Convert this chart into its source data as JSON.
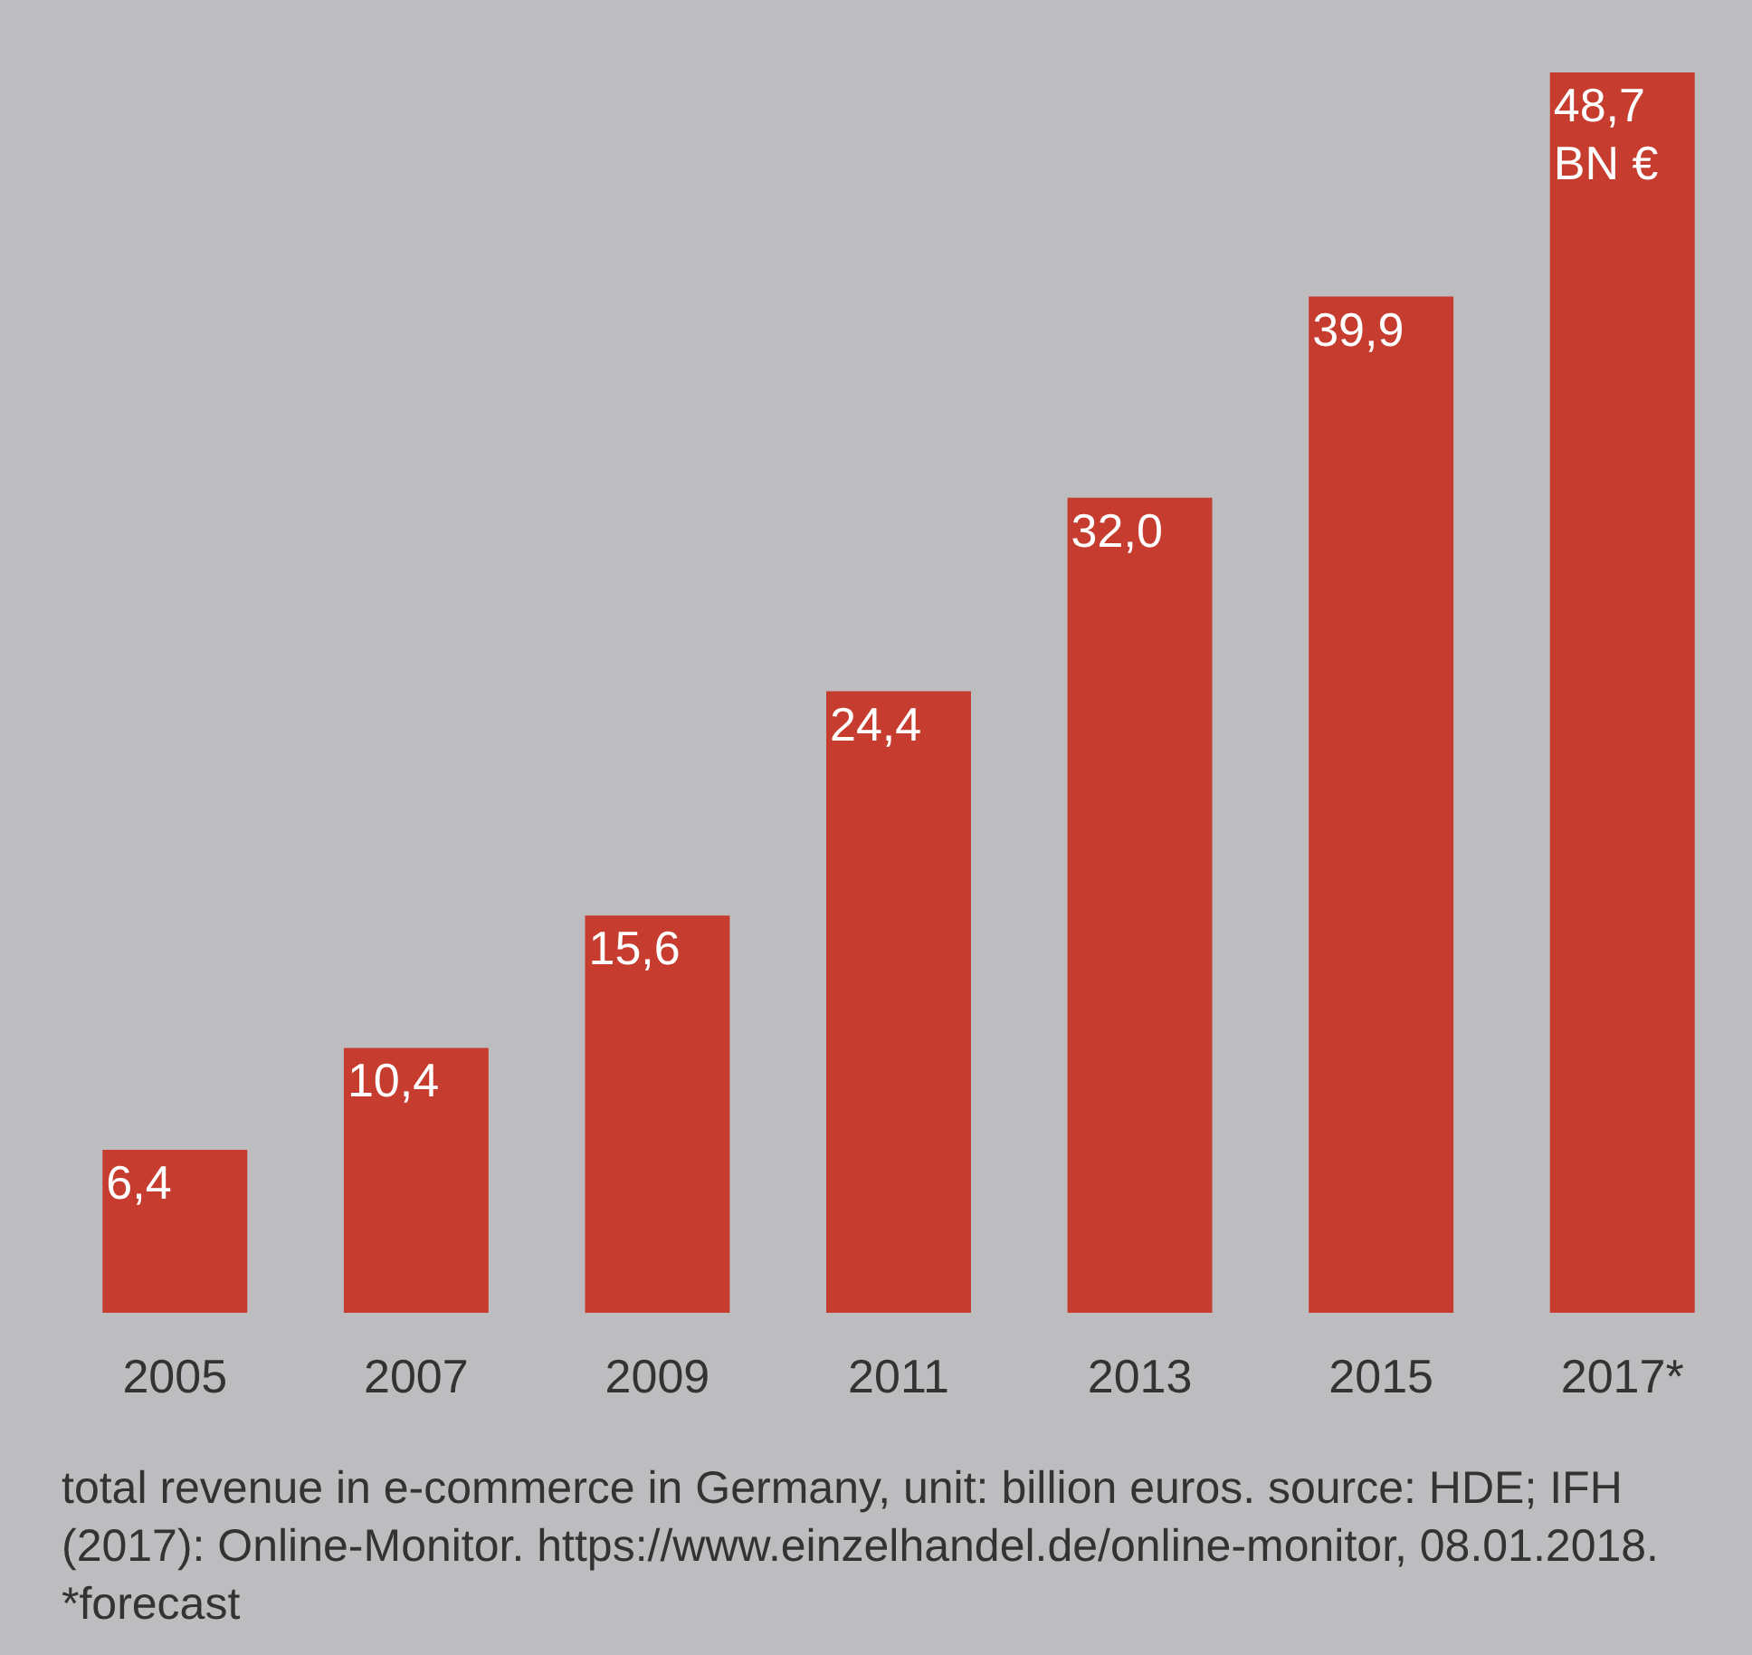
{
  "chart_data": {
    "type": "bar",
    "categories": [
      "2005",
      "2007",
      "2009",
      "2011",
      "2013",
      "2015",
      "2017*"
    ],
    "values": [
      6.4,
      10.4,
      15.6,
      24.4,
      32.0,
      39.9,
      48.7
    ],
    "color": "#c63d30",
    "value_labels": [
      "6,4",
      "10,4",
      "15,6",
      "24,4",
      "32,0",
      "39,9",
      "48,7\nBN €"
    ],
    "annotations": [
      "total revenue in e-commerce in Germany, unit: billion euros. source: HDE; IFH (2017): Online-Monitor. https://www.einzelhandel.de/online-monitor, 08.01.2018. *forecast"
    ]
  }
}
